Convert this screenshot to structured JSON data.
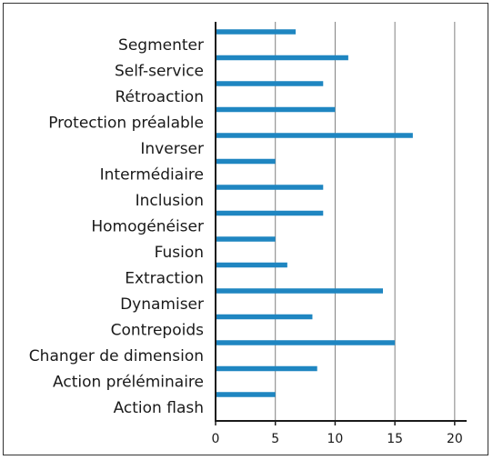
{
  "chart_data": {
    "type": "bar",
    "orientation": "horizontal",
    "categories": [
      "Segmenter",
      "Self-service",
      "Rétroaction",
      "Protection préalable",
      "Inverser",
      "Intermédiaire",
      "Inclusion",
      "Homogénéiser",
      "Fusion",
      "Extraction",
      "Dynamiser",
      "Contrepoids",
      "Changer de dimension",
      "Action préléminaire",
      "Action flash"
    ],
    "values": [
      6.7,
      11.1,
      9.0,
      10.0,
      16.5,
      5.0,
      9.0,
      9.0,
      5.0,
      6.0,
      14.0,
      8.1,
      15.0,
      8.5,
      5.0
    ],
    "xlim": [
      0,
      21
    ],
    "xticks": [
      "0",
      "5",
      "10",
      "15",
      "20"
    ],
    "xtick_values": [
      0,
      5,
      10,
      15,
      20
    ],
    "grid": "vertical",
    "bar_color": "#1f86c1",
    "grid_color": "#808080",
    "axis_color": "#1a1a1a"
  }
}
